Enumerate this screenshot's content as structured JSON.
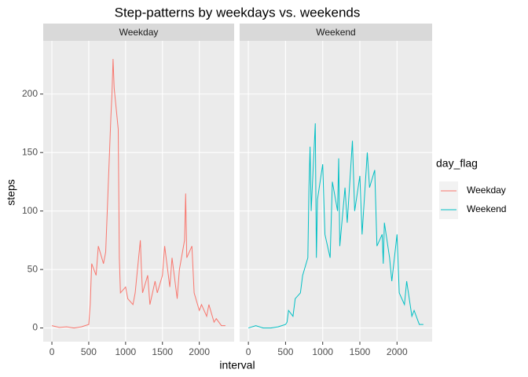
{
  "chart_data": {
    "type": "line",
    "title": "Step-patterns by weekdays vs. weekends",
    "x_label": "interval",
    "y_label": "steps",
    "legend_title": "day_flag",
    "facet": true,
    "grid": true,
    "x": [
      0,
      100,
      200,
      300,
      400,
      500,
      520,
      540,
      600,
      630,
      700,
      730,
      800,
      815,
      830,
      845,
      900,
      915,
      930,
      1000,
      1030,
      1100,
      1130,
      1200,
      1215,
      1230,
      1300,
      1330,
      1400,
      1430,
      1500,
      1530,
      1600,
      1630,
      1700,
      1730,
      1800,
      1815,
      1830,
      1900,
      1930,
      2000,
      2030,
      2100,
      2130,
      2200,
      2230,
      2300,
      2355
    ],
    "series": [
      {
        "name": "Weekday",
        "color": "#F8766D",
        "values": [
          2,
          0.5,
          1,
          0,
          1,
          3,
          20,
          55,
          45,
          70,
          55,
          65,
          180,
          200,
          230,
          205,
          170,
          60,
          30,
          35,
          25,
          20,
          30,
          75,
          50,
          30,
          45,
          20,
          40,
          30,
          45,
          70,
          35,
          60,
          25,
          50,
          75,
          115,
          60,
          70,
          30,
          15,
          20,
          10,
          20,
          5,
          8,
          2,
          2
        ]
      },
      {
        "name": "Weekend",
        "color": "#00BFC4",
        "values": [
          0,
          2,
          0,
          0,
          1,
          3,
          5,
          15,
          10,
          25,
          30,
          45,
          60,
          120,
          155,
          100,
          175,
          60,
          110,
          140,
          80,
          60,
          125,
          100,
          145,
          70,
          120,
          90,
          160,
          100,
          130,
          80,
          150,
          120,
          135,
          70,
          80,
          55,
          90,
          60,
          40,
          80,
          30,
          20,
          40,
          10,
          15,
          3,
          3
        ]
      }
    ],
    "xlim": [
      -117.75,
      2472.75
    ],
    "xticks": [
      0,
      500,
      1000,
      1500,
      2000
    ],
    "ylim": [
      -11.7,
      245.5
    ],
    "yticks": [
      0,
      50,
      100,
      150,
      200
    ]
  }
}
